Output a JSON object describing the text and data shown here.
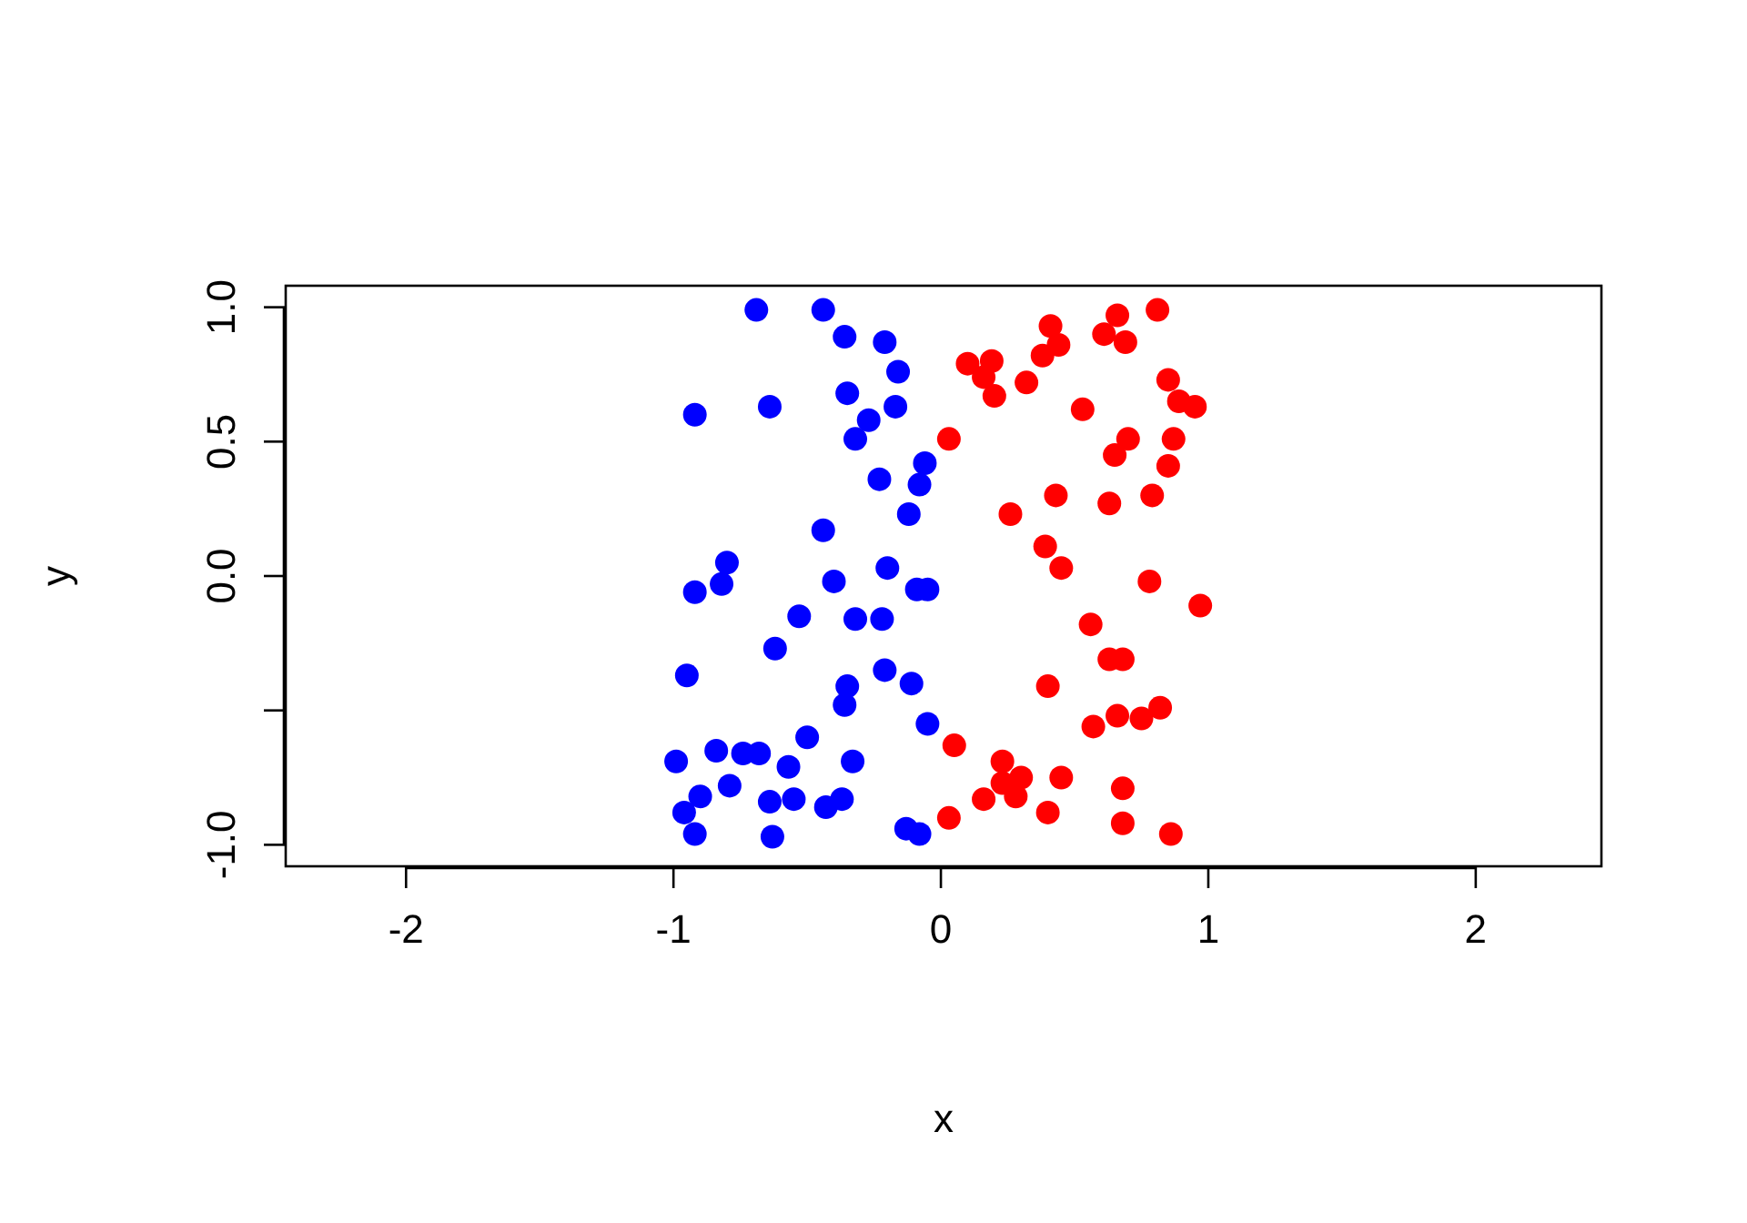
{
  "chart_data": {
    "type": "scatter",
    "xlabel": "x",
    "ylabel": "y",
    "xlim": [
      -2.45,
      2.47
    ],
    "ylim": [
      -1.08,
      1.08
    ],
    "xticks": [
      -2,
      -1,
      0,
      1,
      2
    ],
    "yticks": [
      {
        "value": -1,
        "label": "-1.0"
      },
      {
        "value": -0.5,
        "label": null
      },
      {
        "value": 0,
        "label": "0.0"
      },
      {
        "value": 0.5,
        "label": "0.5"
      },
      {
        "value": 1,
        "label": "1.0"
      }
    ],
    "marker": "circle",
    "grid": false,
    "series": [
      {
        "color": "#0000ff",
        "x": [
          -0.69,
          -0.44,
          -0.36,
          -0.21,
          -0.16,
          -0.35,
          -0.92,
          -0.64,
          -0.17,
          -0.27,
          -0.32,
          -0.06,
          -0.23,
          -0.08,
          -0.12,
          -0.44,
          -0.8,
          -0.82,
          -0.92,
          -0.4,
          -0.2,
          -0.09,
          -0.05,
          -0.53,
          -0.32,
          -0.22,
          -0.62,
          -0.95,
          -0.21,
          -0.11,
          -0.35,
          -0.36,
          -0.05,
          -0.5,
          -0.99,
          -0.84,
          -0.74,
          -0.68,
          -0.57,
          -0.33,
          -0.79,
          -0.9,
          -0.96,
          -0.92,
          -0.64,
          -0.55,
          -0.43,
          -0.37,
          -0.63,
          -0.13,
          -0.08
        ],
        "values": [
          0.99,
          0.99,
          0.89,
          0.87,
          0.76,
          0.68,
          0.6,
          0.63,
          0.63,
          0.58,
          0.51,
          0.42,
          0.36,
          0.34,
          0.23,
          0.17,
          0.05,
          -0.03,
          -0.06,
          -0.02,
          0.03,
          -0.05,
          -0.05,
          -0.15,
          -0.16,
          -0.16,
          -0.27,
          -0.37,
          -0.35,
          -0.4,
          -0.41,
          -0.48,
          -0.55,
          -0.6,
          -0.69,
          -0.65,
          -0.66,
          -0.66,
          -0.71,
          -0.69,
          -0.78,
          -0.82,
          -0.88,
          -0.96,
          -0.84,
          -0.83,
          -0.86,
          -0.83,
          -0.97,
          -0.94,
          -0.96
        ]
      },
      {
        "color": "#ff0000",
        "x": [
          0.81,
          0.66,
          0.41,
          0.61,
          0.69,
          0.44,
          0.38,
          0.19,
          0.1,
          0.16,
          0.32,
          0.2,
          0.85,
          0.89,
          0.95,
          0.53,
          0.03,
          0.7,
          0.87,
          0.65,
          0.85,
          0.43,
          0.63,
          0.79,
          0.26,
          0.39,
          0.45,
          0.78,
          0.97,
          0.56,
          0.63,
          0.68,
          0.4,
          0.57,
          0.66,
          0.75,
          0.82,
          0.05,
          0.23,
          0.3,
          0.23,
          0.28,
          0.16,
          0.45,
          0.68,
          0.03,
          0.4,
          0.68,
          0.86
        ],
        "values": [
          0.99,
          0.97,
          0.93,
          0.9,
          0.87,
          0.86,
          0.82,
          0.8,
          0.79,
          0.74,
          0.72,
          0.67,
          0.73,
          0.65,
          0.63,
          0.62,
          0.51,
          0.51,
          0.51,
          0.45,
          0.41,
          0.3,
          0.27,
          0.3,
          0.23,
          0.11,
          0.03,
          -0.02,
          -0.11,
          -0.18,
          -0.31,
          -0.31,
          -0.41,
          -0.56,
          -0.52,
          -0.53,
          -0.49,
          -0.63,
          -0.69,
          -0.75,
          -0.77,
          -0.82,
          -0.83,
          -0.75,
          -0.79,
          -0.9,
          -0.88,
          -0.92,
          -0.96
        ]
      }
    ]
  }
}
